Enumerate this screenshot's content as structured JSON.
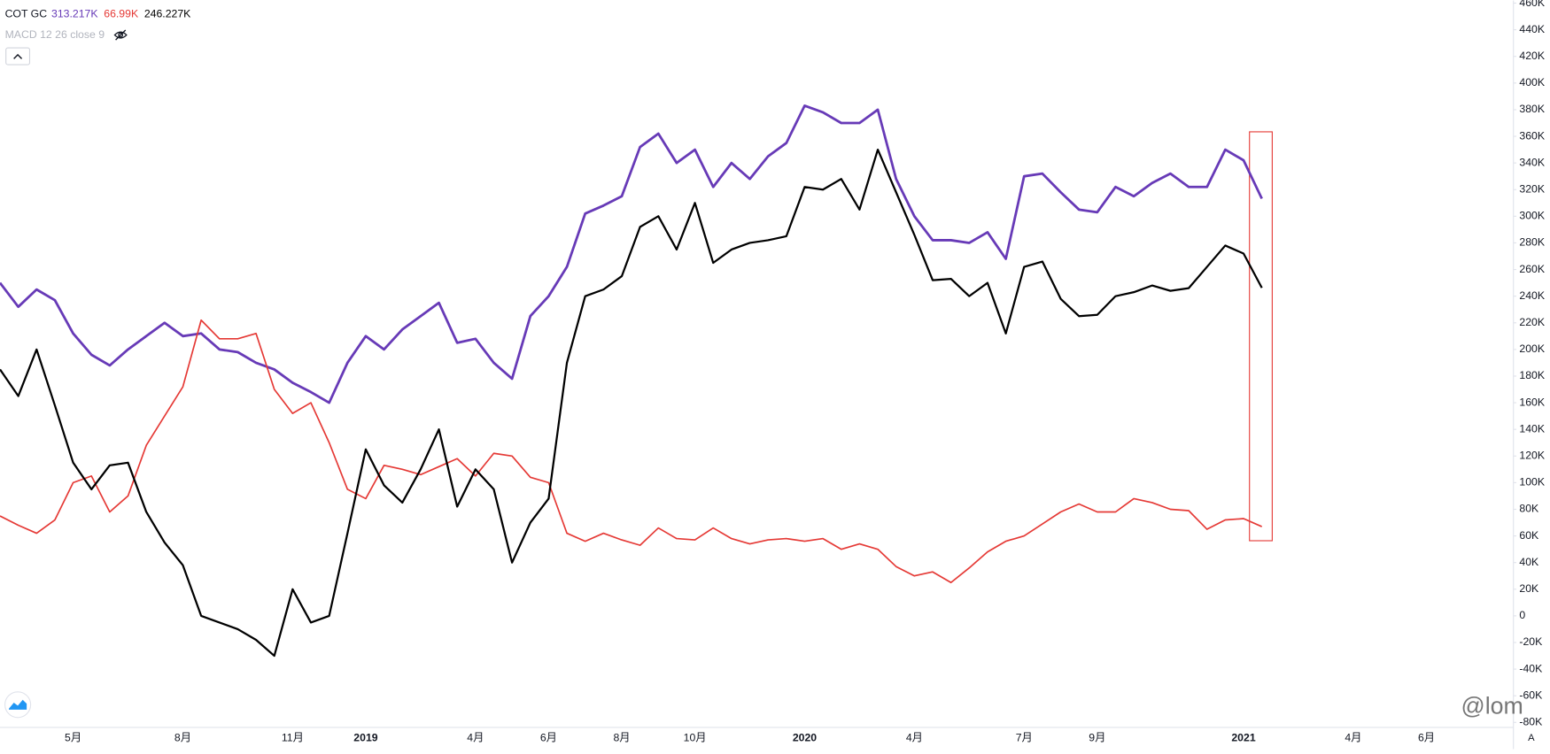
{
  "header": {
    "indicator": "COT GC",
    "sub_indicator": "MACD 12 26 close 9",
    "watermark": "@lom",
    "scale_button": "A"
  },
  "chart_data": {
    "type": "line",
    "categories": [
      null,
      null,
      null,
      null,
      "5月",
      null,
      null,
      null,
      null,
      null,
      "8月",
      null,
      null,
      null,
      null,
      null,
      "11月",
      null,
      null,
      null,
      "2019",
      null,
      null,
      null,
      null,
      null,
      "4月",
      null,
      null,
      null,
      "6月",
      null,
      null,
      null,
      "8月",
      null,
      null,
      null,
      "10月",
      null,
      null,
      null,
      null,
      null,
      "2020",
      null,
      null,
      null,
      null,
      null,
      "4月",
      null,
      null,
      null,
      null,
      null,
      "7月",
      null,
      null,
      null,
      "9月",
      null,
      null,
      null,
      null,
      null,
      null,
      null,
      "2021",
      null,
      null,
      null,
      null,
      null,
      "4月",
      null,
      null,
      null,
      "6月",
      null,
      null,
      null,
      null
    ],
    "series": [
      {
        "name": "313.217K",
        "color": "#673ab7",
        "width": 2.5,
        "values": [
          250,
          232,
          245,
          237,
          212,
          196,
          188,
          200,
          210,
          220,
          210,
          212,
          200,
          198,
          190,
          185,
          175,
          168,
          160,
          190,
          210,
          200,
          215,
          225,
          235,
          205,
          208,
          190,
          178,
          225,
          240,
          262,
          302,
          308,
          315,
          352,
          362,
          340,
          350,
          322,
          340,
          328,
          345,
          355,
          383,
          378,
          370,
          370,
          380,
          328,
          300,
          282,
          282,
          280,
          288,
          268,
          330,
          332,
          318,
          305,
          303,
          322,
          315,
          325,
          332,
          322,
          322,
          350,
          342,
          313.217,
          null,
          null,
          null,
          null,
          null,
          null,
          null,
          null,
          null,
          null,
          null,
          null,
          null
        ]
      },
      {
        "name": "66.99K",
        "color": "#e53935",
        "width": 1.5,
        "values": [
          75,
          68,
          62,
          72,
          100,
          105,
          78,
          90,
          128,
          150,
          172,
          222,
          208,
          208,
          212,
          170,
          152,
          160,
          130,
          95,
          88,
          113,
          110,
          106,
          112,
          118,
          105,
          122,
          120,
          104,
          100,
          62,
          56,
          62,
          57,
          53,
          66,
          58,
          57,
          66,
          58,
          54,
          57,
          58,
          56,
          58,
          50,
          54,
          50,
          37,
          30,
          33,
          25,
          36,
          48,
          56,
          60,
          69,
          78,
          84,
          78,
          78,
          88,
          85,
          80,
          79,
          65,
          72,
          73,
          66.99,
          null,
          null,
          null,
          null,
          null,
          null,
          null,
          null,
          null,
          null,
          null,
          null,
          null
        ]
      },
      {
        "name": "246.227K",
        "color": "#000000",
        "width": 2,
        "values": [
          185,
          165,
          200,
          158,
          115,
          95,
          113,
          115,
          78,
          55,
          38,
          0,
          -5,
          -10,
          -18,
          -30,
          20,
          -5,
          0,
          62,
          125,
          98,
          85,
          110,
          140,
          82,
          110,
          95,
          40,
          70,
          88,
          190,
          240,
          245,
          255,
          292,
          300,
          275,
          310,
          265,
          275,
          280,
          282,
          285,
          322,
          320,
          328,
          305,
          350,
          318,
          286,
          252,
          253,
          240,
          250,
          212,
          262,
          266,
          238,
          225,
          226,
          240,
          243,
          248,
          244,
          246,
          262,
          278,
          272,
          246.227,
          null,
          null,
          null,
          null,
          null,
          null,
          null,
          null,
          null,
          null,
          null,
          null,
          null
        ]
      }
    ],
    "ylim": [
      -83,
      462
    ],
    "yticks": [
      {
        "value": 460,
        "label": "460K"
      },
      {
        "value": 440,
        "label": "440K"
      },
      {
        "value": 420,
        "label": "420K"
      },
      {
        "value": 400,
        "label": "400K"
      },
      {
        "value": 380,
        "label": "380K"
      },
      {
        "value": 360,
        "label": "360K"
      },
      {
        "value": 340,
        "label": "340K"
      },
      {
        "value": 320,
        "label": "320K"
      },
      {
        "value": 300,
        "label": "300K"
      },
      {
        "value": 280,
        "label": "280K"
      },
      {
        "value": 260,
        "label": "260K"
      },
      {
        "value": 240,
        "label": "240K"
      },
      {
        "value": 220,
        "label": "220K"
      },
      {
        "value": 200,
        "label": "200K"
      },
      {
        "value": 180,
        "label": "180K"
      },
      {
        "value": 160,
        "label": "160K"
      },
      {
        "value": 140,
        "label": "140K"
      },
      {
        "value": 120,
        "label": "120K"
      },
      {
        "value": 100,
        "label": "100K"
      },
      {
        "value": 80,
        "label": "80K"
      },
      {
        "value": 60,
        "label": "60K"
      },
      {
        "value": 40,
        "label": "40K"
      },
      {
        "value": 20,
        "label": "20K"
      },
      0,
      {
        "value": -20,
        "label": "-20K"
      },
      {
        "value": -40,
        "label": "-40K"
      },
      {
        "value": -60,
        "label": "-60K"
      },
      {
        "value": -80,
        "label": "-80K"
      }
    ],
    "grid": false
  }
}
